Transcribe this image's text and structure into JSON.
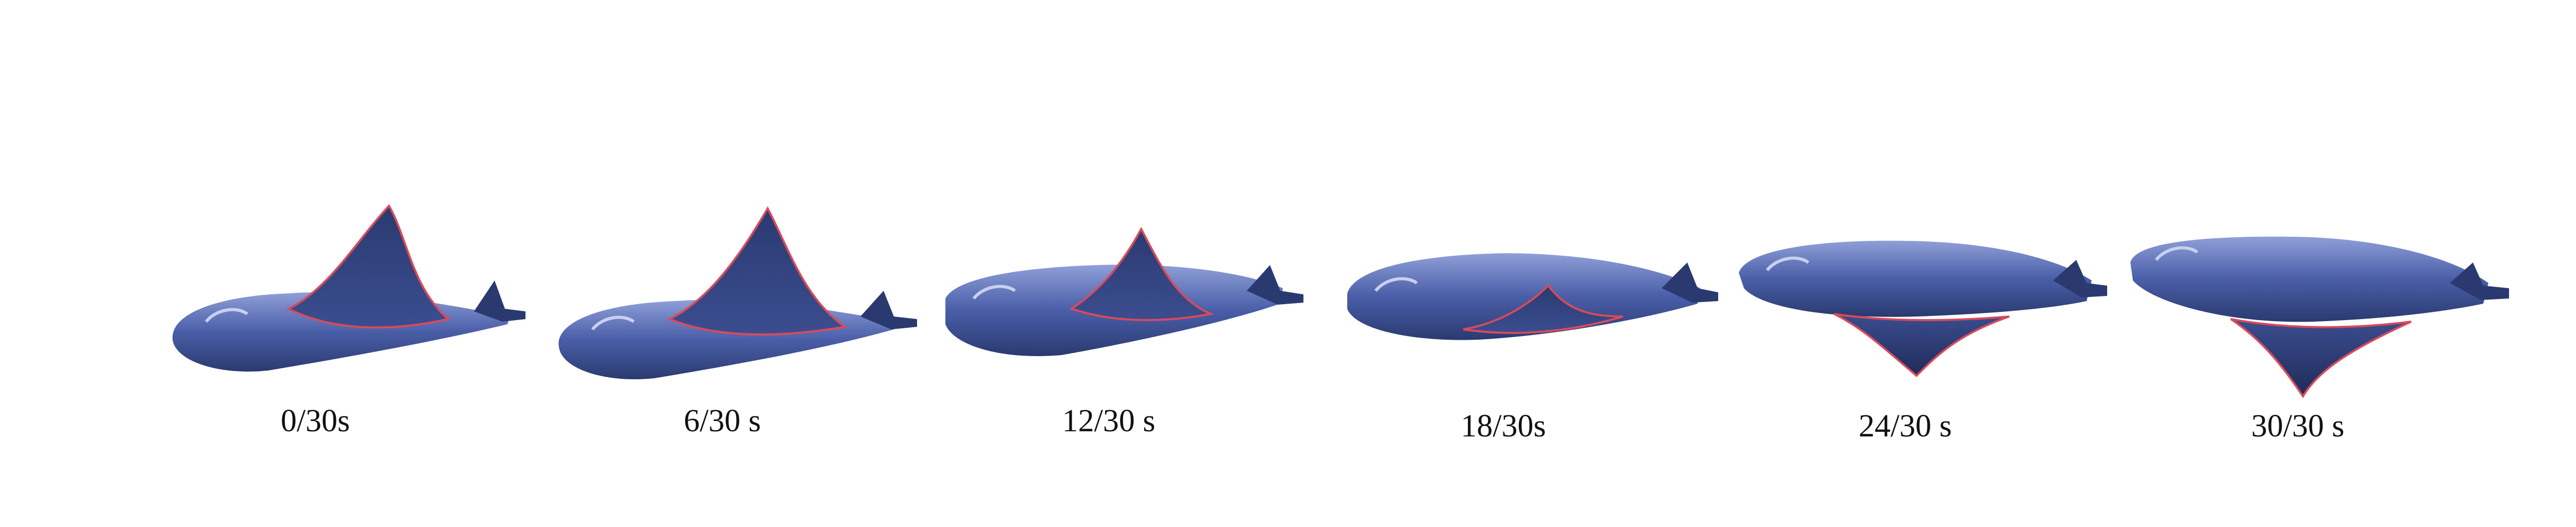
{
  "colors": {
    "body_dark": "#2a3a70",
    "body_mid": "#4a5ea8",
    "body_light": "#8f9fd8",
    "fin_outline": "#d94a5a",
    "label": "#111111"
  },
  "frames": [
    {
      "label": "0/30s",
      "fin": "up-high"
    },
    {
      "label": "6/30 s",
      "fin": "up-high"
    },
    {
      "label": "12/30 s",
      "fin": "up-mid"
    },
    {
      "label": "18/30s",
      "fin": "up-low"
    },
    {
      "label": "24/30 s",
      "fin": "down-low"
    },
    {
      "label": "30/30 s",
      "fin": "down-mid"
    }
  ]
}
